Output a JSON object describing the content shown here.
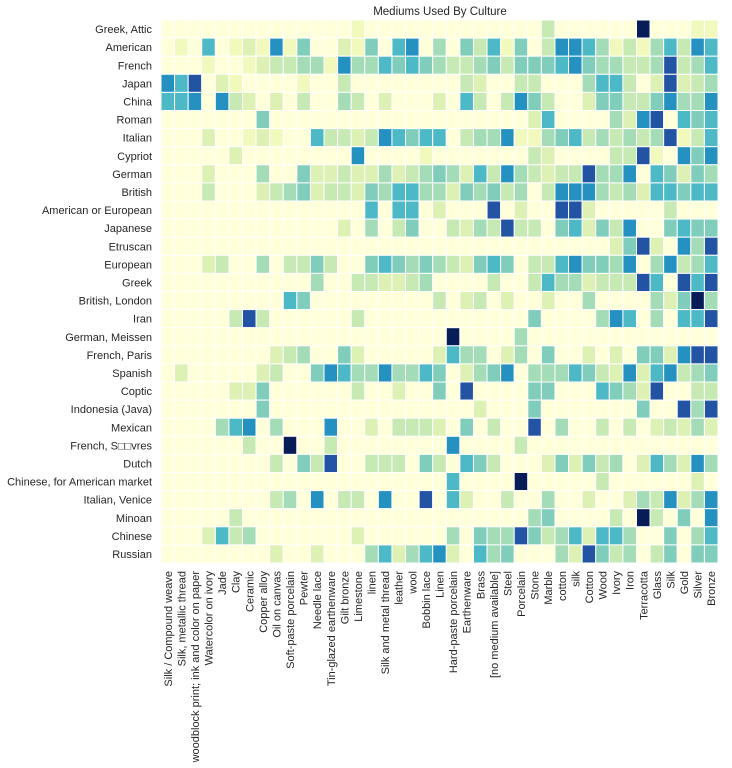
{
  "chart_data": {
    "type": "heatmap",
    "title": "Mediums Used By Culture",
    "xlabel": "",
    "ylabel": "",
    "colormap": "YlGnBu",
    "value_scale": "relative intensity 0 (lowest) to 9 (highest)",
    "colors": [
      "#ffffd9",
      "#f1f9bd",
      "#ddf1b4",
      "#c7e9b4",
      "#a4dcb7",
      "#80cdbc",
      "#4db9c6",
      "#2591c0",
      "#2353a3",
      "#081d58"
    ],
    "x_categories": [
      "Silk / Compound weave",
      "Silk, metallic thread",
      "woodblock print; ink and color on paper",
      "Watercolor on ivory",
      "Jade",
      "Clay",
      "Ceramic",
      "Copper alloy",
      "Oil on canvas",
      "Soft-paste porcelain",
      "Pewter",
      "Needle lace",
      "Tin-glazed earthenware",
      "Gilt bronze",
      "Limestone",
      "linen",
      "Silk and metal thread",
      "leather",
      "wool",
      "Bobbin lace",
      "Linen",
      "Hard-paste porcelain",
      "Earthenware",
      "Brass",
      "[no medium available]",
      "Steel",
      "Porcelain",
      "Stone",
      "Marble",
      "cotton",
      "silk",
      "Cotton",
      "Wood",
      "Ivory",
      "Iron",
      "Terracotta",
      "Glass",
      "Silk",
      "Gold",
      "Silver",
      "Bronze"
    ],
    "y_categories": [
      "Greek, Attic",
      "American",
      "French",
      "Japan",
      "China",
      "Roman",
      "Italian",
      "Cypriot",
      "German",
      "British",
      "American or European",
      "Japanese",
      "Etruscan",
      "European",
      "Greek",
      "British, London",
      "Iran",
      "German, Meissen",
      "French, Paris",
      "Spanish",
      "Coptic",
      "Indonesia (Java)",
      "Mexican",
      "French, S□□vres",
      "Dutch",
      "Chinese, for American market",
      "Italian, Venice",
      "Minoan",
      "Chinese",
      "Russian"
    ],
    "values": [
      [
        0,
        0,
        0,
        0,
        0,
        0,
        0,
        0,
        0,
        0,
        0,
        0,
        0,
        0,
        1,
        0,
        0,
        0,
        0,
        0,
        0,
        0,
        0,
        0,
        0,
        0,
        0,
        0,
        3,
        0,
        0,
        0,
        0,
        0,
        0,
        9,
        0,
        0,
        0,
        1,
        1
      ],
      [
        0,
        1,
        0,
        6,
        0,
        1,
        2,
        1,
        7,
        1,
        5,
        0,
        0,
        2,
        1,
        5,
        0,
        6,
        7,
        0,
        4,
        0,
        5,
        3,
        6,
        1,
        5,
        0,
        3,
        7,
        7,
        6,
        4,
        1,
        3,
        1,
        4,
        6,
        3,
        7,
        6
      ],
      [
        0,
        0,
        0,
        1,
        0,
        0,
        1,
        2,
        3,
        3,
        4,
        4,
        1,
        7,
        4,
        4,
        6,
        5,
        6,
        5,
        4,
        3,
        3,
        4,
        5,
        3,
        5,
        5,
        5,
        6,
        7,
        5,
        4,
        4,
        3,
        3,
        4,
        8,
        3,
        4,
        6
      ],
      [
        7,
        6,
        8,
        0,
        2,
        1,
        0,
        0,
        0,
        0,
        1,
        0,
        0,
        3,
        0,
        0,
        0,
        0,
        0,
        0,
        0,
        0,
        3,
        2,
        0,
        0,
        3,
        3,
        0,
        0,
        0,
        4,
        6,
        6,
        3,
        0,
        2,
        8,
        2,
        3,
        4
      ],
      [
        6,
        6,
        7,
        0,
        7,
        3,
        2,
        0,
        2,
        0,
        3,
        0,
        0,
        4,
        3,
        0,
        2,
        0,
        0,
        0,
        2,
        0,
        6,
        3,
        0,
        3,
        7,
        5,
        3,
        0,
        0,
        2,
        5,
        5,
        3,
        3,
        5,
        7,
        4,
        4,
        7
      ],
      [
        0,
        0,
        0,
        0,
        0,
        0,
        0,
        5,
        0,
        0,
        0,
        0,
        0,
        0,
        0,
        0,
        0,
        0,
        0,
        0,
        0,
        0,
        0,
        0,
        0,
        0,
        0,
        2,
        6,
        0,
        0,
        0,
        0,
        4,
        2,
        7,
        8,
        0,
        6,
        5,
        6
      ],
      [
        0,
        0,
        0,
        2,
        0,
        0,
        1,
        2,
        1,
        0,
        0,
        6,
        3,
        3,
        2,
        3,
        7,
        6,
        5,
        6,
        6,
        0,
        3,
        4,
        4,
        7,
        1,
        1,
        4,
        5,
        6,
        3,
        4,
        3,
        4,
        3,
        4,
        8,
        1,
        3,
        6
      ],
      [
        0,
        0,
        0,
        0,
        0,
        2,
        0,
        0,
        0,
        0,
        0,
        0,
        0,
        0,
        7,
        0,
        0,
        0,
        0,
        1,
        0,
        0,
        0,
        0,
        0,
        0,
        0,
        3,
        2,
        0,
        0,
        0,
        0,
        3,
        3,
        8,
        1,
        0,
        7,
        5,
        7
      ],
      [
        0,
        0,
        0,
        2,
        0,
        0,
        0,
        4,
        0,
        0,
        5,
        2,
        2,
        3,
        2,
        2,
        4,
        2,
        3,
        4,
        5,
        4,
        2,
        6,
        3,
        7,
        4,
        3,
        2,
        3,
        3,
        8,
        4,
        4,
        7,
        0,
        6,
        5,
        2,
        5,
        4
      ],
      [
        0,
        0,
        0,
        3,
        0,
        0,
        0,
        2,
        3,
        4,
        5,
        2,
        3,
        3,
        2,
        5,
        4,
        6,
        6,
        4,
        4,
        2,
        5,
        4,
        5,
        3,
        4,
        0,
        3,
        7,
        7,
        7,
        4,
        3,
        4,
        2,
        6,
        6,
        5,
        6,
        6
      ],
      [
        0,
        0,
        0,
        0,
        0,
        0,
        0,
        0,
        0,
        0,
        0,
        0,
        0,
        0,
        0,
        6,
        0,
        6,
        6,
        0,
        2,
        0,
        0,
        0,
        8,
        0,
        2,
        0,
        0,
        8,
        8,
        2,
        0,
        0,
        0,
        0,
        0,
        3,
        0,
        0,
        0
      ],
      [
        0,
        0,
        0,
        0,
        0,
        0,
        0,
        0,
        0,
        0,
        0,
        0,
        0,
        2,
        0,
        4,
        0,
        3,
        5,
        0,
        0,
        3,
        2,
        4,
        3,
        8,
        3,
        3,
        0,
        5,
        6,
        2,
        5,
        3,
        7,
        0,
        0,
        5,
        6,
        5,
        5
      ],
      [
        0,
        0,
        0,
        0,
        0,
        0,
        0,
        0,
        0,
        0,
        0,
        0,
        0,
        0,
        0,
        0,
        0,
        0,
        0,
        0,
        0,
        0,
        0,
        0,
        0,
        0,
        0,
        0,
        0,
        0,
        0,
        0,
        0,
        2,
        5,
        8,
        2,
        0,
        7,
        4,
        8
      ],
      [
        0,
        0,
        0,
        2,
        3,
        0,
        0,
        4,
        0,
        3,
        3,
        5,
        3,
        0,
        0,
        5,
        6,
        5,
        4,
        5,
        4,
        3,
        2,
        5,
        6,
        5,
        0,
        3,
        3,
        6,
        7,
        5,
        5,
        4,
        7,
        0,
        4,
        7,
        3,
        4,
        6
      ],
      [
        0,
        0,
        0,
        0,
        0,
        0,
        0,
        0,
        0,
        0,
        0,
        4,
        0,
        0,
        3,
        3,
        2,
        2,
        3,
        4,
        0,
        0,
        0,
        0,
        3,
        0,
        0,
        3,
        6,
        4,
        4,
        2,
        3,
        3,
        3,
        8,
        6,
        0,
        8,
        6,
        8
      ],
      [
        0,
        0,
        0,
        0,
        0,
        0,
        0,
        0,
        0,
        6,
        5,
        0,
        0,
        0,
        0,
        0,
        0,
        0,
        0,
        0,
        3,
        0,
        2,
        3,
        0,
        2,
        0,
        0,
        2,
        0,
        0,
        4,
        0,
        0,
        0,
        0,
        4,
        2,
        5,
        9,
        4
      ],
      [
        0,
        0,
        0,
        0,
        0,
        3,
        8,
        3,
        0,
        0,
        0,
        0,
        0,
        0,
        3,
        0,
        0,
        0,
        0,
        0,
        0,
        0,
        0,
        0,
        0,
        0,
        0,
        5,
        0,
        0,
        0,
        0,
        4,
        7,
        6,
        0,
        4,
        0,
        6,
        6,
        8
      ],
      [
        0,
        0,
        0,
        0,
        0,
        0,
        0,
        0,
        0,
        0,
        0,
        0,
        0,
        0,
        0,
        0,
        0,
        0,
        0,
        0,
        0,
        9,
        0,
        0,
        0,
        0,
        4,
        0,
        0,
        0,
        0,
        0,
        0,
        0,
        0,
        0,
        0,
        0,
        0,
        0,
        0
      ],
      [
        0,
        0,
        0,
        0,
        0,
        0,
        0,
        0,
        2,
        3,
        4,
        0,
        0,
        5,
        2,
        0,
        0,
        0,
        0,
        0,
        2,
        6,
        4,
        4,
        0,
        2,
        4,
        0,
        5,
        0,
        0,
        2,
        0,
        2,
        0,
        5,
        5,
        2,
        7,
        8,
        8
      ],
      [
        0,
        2,
        0,
        0,
        0,
        0,
        0,
        2,
        3,
        0,
        0,
        5,
        7,
        6,
        4,
        4,
        7,
        4,
        4,
        6,
        5,
        0,
        2,
        4,
        5,
        7,
        0,
        4,
        4,
        4,
        6,
        5,
        3,
        2,
        7,
        2,
        6,
        7,
        3,
        4,
        5
      ],
      [
        0,
        0,
        0,
        0,
        0,
        2,
        2,
        5,
        0,
        0,
        0,
        0,
        0,
        0,
        3,
        0,
        0,
        2,
        0,
        0,
        5,
        0,
        8,
        0,
        0,
        0,
        0,
        5,
        5,
        0,
        0,
        0,
        6,
        5,
        4,
        2,
        8,
        0,
        0,
        3,
        3
      ],
      [
        0,
        0,
        0,
        0,
        0,
        0,
        0,
        5,
        0,
        0,
        0,
        0,
        0,
        0,
        0,
        0,
        0,
        0,
        0,
        0,
        0,
        0,
        0,
        2,
        0,
        0,
        0,
        5,
        0,
        0,
        0,
        0,
        0,
        0,
        0,
        5,
        0,
        0,
        8,
        4,
        8
      ],
      [
        0,
        0,
        0,
        0,
        4,
        6,
        7,
        0,
        4,
        0,
        0,
        0,
        7,
        0,
        0,
        2,
        0,
        3,
        3,
        3,
        2,
        0,
        5,
        0,
        3,
        0,
        0,
        8,
        0,
        4,
        0,
        0,
        3,
        0,
        3,
        0,
        2,
        3,
        2,
        4,
        2
      ],
      [
        0,
        0,
        0,
        0,
        0,
        0,
        3,
        0,
        0,
        9,
        0,
        0,
        3,
        0,
        0,
        0,
        0,
        0,
        0,
        0,
        0,
        7,
        0,
        0,
        0,
        0,
        3,
        0,
        0,
        0,
        0,
        0,
        0,
        0,
        0,
        0,
        0,
        0,
        0,
        0,
        0
      ],
      [
        0,
        0,
        0,
        0,
        0,
        0,
        0,
        0,
        3,
        0,
        5,
        3,
        8,
        0,
        0,
        3,
        3,
        3,
        0,
        5,
        3,
        0,
        6,
        5,
        3,
        0,
        0,
        0,
        2,
        5,
        2,
        5,
        3,
        4,
        0,
        2,
        6,
        4,
        2,
        7,
        4
      ],
      [
        0,
        0,
        0,
        0,
        0,
        0,
        0,
        0,
        0,
        0,
        0,
        0,
        0,
        0,
        0,
        0,
        0,
        0,
        0,
        0,
        0,
        6,
        0,
        0,
        0,
        0,
        9,
        0,
        0,
        0,
        0,
        0,
        3,
        0,
        0,
        0,
        0,
        0,
        0,
        2,
        0
      ],
      [
        0,
        0,
        0,
        0,
        0,
        0,
        0,
        0,
        3,
        4,
        0,
        7,
        0,
        3,
        3,
        0,
        7,
        0,
        0,
        8,
        0,
        6,
        2,
        0,
        0,
        3,
        0,
        0,
        4,
        0,
        0,
        2,
        0,
        0,
        2,
        4,
        3,
        7,
        2,
        4,
        7
      ],
      [
        0,
        0,
        0,
        0,
        0,
        3,
        0,
        0,
        0,
        0,
        0,
        0,
        0,
        0,
        0,
        0,
        0,
        0,
        0,
        0,
        0,
        0,
        0,
        0,
        0,
        0,
        0,
        4,
        5,
        0,
        0,
        0,
        0,
        3,
        0,
        9,
        3,
        0,
        5,
        0,
        7
      ],
      [
        0,
        0,
        0,
        2,
        6,
        3,
        4,
        0,
        0,
        0,
        0,
        0,
        0,
        0,
        2,
        0,
        0,
        0,
        0,
        0,
        0,
        4,
        0,
        5,
        4,
        4,
        8,
        5,
        3,
        4,
        6,
        2,
        6,
        6,
        4,
        0,
        0,
        5,
        0,
        4,
        6
      ],
      [
        0,
        0,
        0,
        0,
        0,
        0,
        0,
        0,
        2,
        0,
        0,
        2,
        0,
        0,
        0,
        4,
        6,
        2,
        4,
        6,
        7,
        2,
        0,
        6,
        4,
        5,
        0,
        0,
        0,
        4,
        2,
        8,
        5,
        3,
        4,
        0,
        3,
        5,
        0,
        5,
        5
      ]
    ],
    "legend": "none",
    "grid": false
  }
}
